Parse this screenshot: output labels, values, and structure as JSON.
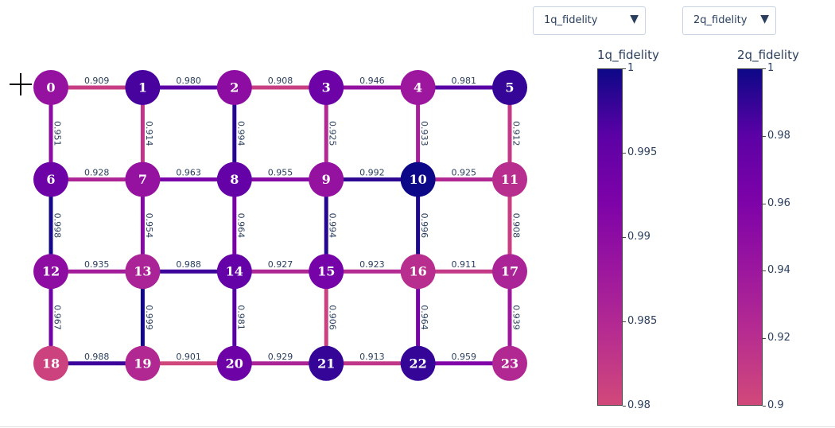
{
  "dropdowns": [
    {
      "id": "dd-1q",
      "selected": "1q_fidelity"
    },
    {
      "id": "dd-2q",
      "selected": "2q_fidelity"
    }
  ],
  "colorbars": [
    {
      "id": "cb-1q",
      "title": "1q_fidelity",
      "range": [
        0.98,
        1
      ],
      "ticks": [
        "1",
        "0.995",
        "0.99",
        "0.985",
        "0.98"
      ],
      "tick_values": [
        1,
        0.995,
        0.99,
        0.985,
        0.98
      ]
    },
    {
      "id": "cb-2q",
      "title": "2q_fidelity",
      "range": [
        0.9,
        1
      ],
      "ticks": [
        "1",
        "0.98",
        "0.96",
        "0.94",
        "0.92",
        "0.9"
      ],
      "tick_values": [
        1,
        0.98,
        0.96,
        0.94,
        0.92,
        0.9
      ]
    }
  ],
  "colorscale": [
    "#d1497a",
    "#b82e8f",
    "#9c179e",
    "#7e03a8",
    "#5c01a6",
    "#0d0887"
  ],
  "crosshair_icon": "plus-crosshair-icon",
  "chart_data": {
    "type": "graph",
    "grid": {
      "rows": 4,
      "cols": 6
    },
    "nodes": [
      {
        "id": "0",
        "row": 0,
        "col": 0,
        "fidelity": 0.989
      },
      {
        "id": "1",
        "row": 0,
        "col": 1,
        "fidelity": 0.997
      },
      {
        "id": "2",
        "row": 0,
        "col": 2,
        "fidelity": 0.99
      },
      {
        "id": "3",
        "row": 0,
        "col": 3,
        "fidelity": 0.994
      },
      {
        "id": "4",
        "row": 0,
        "col": 4,
        "fidelity": 0.988
      },
      {
        "id": "5",
        "row": 0,
        "col": 5,
        "fidelity": 0.998
      },
      {
        "id": "6",
        "row": 1,
        "col": 0,
        "fidelity": 0.994
      },
      {
        "id": "7",
        "row": 1,
        "col": 1,
        "fidelity": 0.989
      },
      {
        "id": "8",
        "row": 1,
        "col": 2,
        "fidelity": 0.995
      },
      {
        "id": "9",
        "row": 1,
        "col": 3,
        "fidelity": 0.989
      },
      {
        "id": "10",
        "row": 1,
        "col": 4,
        "fidelity": 1.0
      },
      {
        "id": "11",
        "row": 1,
        "col": 5,
        "fidelity": 0.984
      },
      {
        "id": "12",
        "row": 2,
        "col": 0,
        "fidelity": 0.99
      },
      {
        "id": "13",
        "row": 2,
        "col": 1,
        "fidelity": 0.986
      },
      {
        "id": "14",
        "row": 2,
        "col": 2,
        "fidelity": 0.995
      },
      {
        "id": "15",
        "row": 2,
        "col": 3,
        "fidelity": 0.993
      },
      {
        "id": "16",
        "row": 2,
        "col": 4,
        "fidelity": 0.984
      },
      {
        "id": "17",
        "row": 2,
        "col": 5,
        "fidelity": 0.986
      },
      {
        "id": "18",
        "row": 3,
        "col": 0,
        "fidelity": 0.981
      },
      {
        "id": "19",
        "row": 3,
        "col": 1,
        "fidelity": 0.985
      },
      {
        "id": "20",
        "row": 3,
        "col": 2,
        "fidelity": 0.994
      },
      {
        "id": "21",
        "row": 3,
        "col": 3,
        "fidelity": 0.998
      },
      {
        "id": "22",
        "row": 3,
        "col": 4,
        "fidelity": 0.998
      },
      {
        "id": "23",
        "row": 3,
        "col": 5,
        "fidelity": 0.985
      }
    ],
    "edges": [
      {
        "a": "0",
        "b": "1",
        "label": "0.909"
      },
      {
        "a": "1",
        "b": "2",
        "label": "0.980"
      },
      {
        "a": "2",
        "b": "3",
        "label": "0.908"
      },
      {
        "a": "3",
        "b": "4",
        "label": "0.946"
      },
      {
        "a": "4",
        "b": "5",
        "label": "0.981"
      },
      {
        "a": "6",
        "b": "7",
        "label": "0.928"
      },
      {
        "a": "7",
        "b": "8",
        "label": "0.963"
      },
      {
        "a": "8",
        "b": "9",
        "label": "0.955"
      },
      {
        "a": "9",
        "b": "10",
        "label": "0.992"
      },
      {
        "a": "10",
        "b": "11",
        "label": "0.925"
      },
      {
        "a": "12",
        "b": "13",
        "label": "0.935"
      },
      {
        "a": "13",
        "b": "14",
        "label": "0.988"
      },
      {
        "a": "14",
        "b": "15",
        "label": "0.927"
      },
      {
        "a": "15",
        "b": "16",
        "label": "0.923"
      },
      {
        "a": "16",
        "b": "17",
        "label": "0.911"
      },
      {
        "a": "18",
        "b": "19",
        "label": "0.988"
      },
      {
        "a": "19",
        "b": "20",
        "label": "0.901"
      },
      {
        "a": "20",
        "b": "21",
        "label": "0.929"
      },
      {
        "a": "21",
        "b": "22",
        "label": "0.913"
      },
      {
        "a": "22",
        "b": "23",
        "label": "0.959"
      },
      {
        "a": "0",
        "b": "6",
        "label": "0.951"
      },
      {
        "a": "1",
        "b": "7",
        "label": "0.914"
      },
      {
        "a": "2",
        "b": "8",
        "label": "0.994"
      },
      {
        "a": "3",
        "b": "9",
        "label": "0.925"
      },
      {
        "a": "4",
        "b": "10",
        "label": "0.933"
      },
      {
        "a": "5",
        "b": "11",
        "label": "0.912"
      },
      {
        "a": "6",
        "b": "12",
        "label": "0.998"
      },
      {
        "a": "7",
        "b": "13",
        "label": "0.954"
      },
      {
        "a": "8",
        "b": "14",
        "label": "0.964"
      },
      {
        "a": "9",
        "b": "15",
        "label": "0.994"
      },
      {
        "a": "10",
        "b": "16",
        "label": "0.996"
      },
      {
        "a": "11",
        "b": "17",
        "label": "0.908"
      },
      {
        "a": "12",
        "b": "18",
        "label": "0.967"
      },
      {
        "a": "13",
        "b": "19",
        "label": "0.999"
      },
      {
        "a": "14",
        "b": "20",
        "label": "0.981"
      },
      {
        "a": "15",
        "b": "21",
        "label": "0.906"
      },
      {
        "a": "16",
        "b": "22",
        "label": "0.964"
      },
      {
        "a": "17",
        "b": "23",
        "label": "0.939"
      }
    ]
  }
}
